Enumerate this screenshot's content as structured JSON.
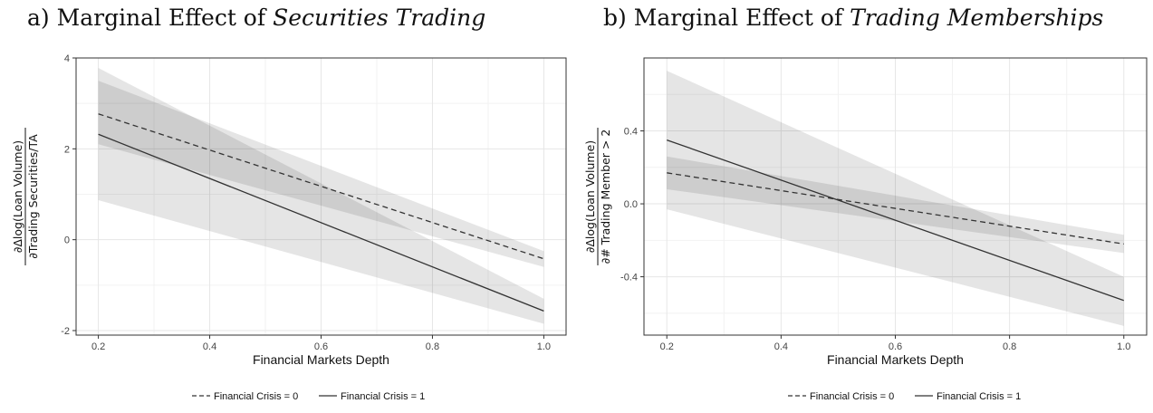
{
  "chart_data": [
    {
      "type": "line",
      "panel_prefix": "a)",
      "title_plain": "Marginal Effect of ",
      "title_italic": "Securities Trading",
      "xlabel": "Financial Markets Depth",
      "ylabel_numerator": "∂Δlog(Loan Volume)",
      "ylabel_denominator": "∂Trading Securities/TA",
      "xlim": [
        0.16,
        1.04
      ],
      "ylim": [
        -2.1,
        4.0
      ],
      "xticks": [
        0.2,
        0.4,
        0.6,
        0.8,
        1.0
      ],
      "xtick_labels": [
        "0.2",
        "0.4",
        "0.6",
        "0.8",
        "1.0"
      ],
      "yticks": [
        -2,
        0,
        2,
        4
      ],
      "ytick_labels": [
        "-2",
        "0",
        "2",
        "4"
      ],
      "grid": true,
      "legend_position": "bottom",
      "series": [
        {
          "name": "Financial Crisis = 0",
          "dash": "dashed",
          "x": [
            0.2,
            1.0
          ],
          "y": [
            2.77,
            -0.42
          ],
          "lower": [
            2.1,
            -0.6
          ],
          "upper": [
            3.5,
            -0.25
          ]
        },
        {
          "name": "Financial Crisis = 1",
          "dash": "solid",
          "x": [
            0.2,
            1.0
          ],
          "y": [
            2.32,
            -1.57
          ],
          "lower": [
            0.87,
            -1.85
          ],
          "upper": [
            3.78,
            -1.3
          ]
        }
      ]
    },
    {
      "type": "line",
      "panel_prefix": "b)",
      "title_plain": "Marginal Effect of ",
      "title_italic": "Trading Memberships",
      "xlabel": "Financial Markets Depth",
      "ylabel_numerator": "∂Δlog(Loan Volume)",
      "ylabel_denominator": "∂# Trading Member > 2",
      "xlim": [
        0.16,
        1.04
      ],
      "ylim": [
        -0.72,
        0.8
      ],
      "xticks": [
        0.2,
        0.4,
        0.6,
        0.8,
        1.0
      ],
      "xtick_labels": [
        "0.2",
        "0.4",
        "0.6",
        "0.8",
        "1.0"
      ],
      "yticks": [
        -0.4,
        0.0,
        0.4
      ],
      "ytick_labels": [
        "-0.4",
        "0.0",
        "0.4"
      ],
      "grid": true,
      "legend_position": "bottom",
      "series": [
        {
          "name": "Financial Crisis = 0",
          "dash": "dashed",
          "x": [
            0.2,
            1.0
          ],
          "y": [
            0.17,
            -0.22
          ],
          "lower": [
            0.08,
            -0.27
          ],
          "upper": [
            0.26,
            -0.17
          ]
        },
        {
          "name": "Financial Crisis = 1",
          "dash": "solid",
          "x": [
            0.2,
            1.0
          ],
          "y": [
            0.35,
            -0.53
          ],
          "lower": [
            -0.03,
            -0.67
          ],
          "upper": [
            0.73,
            -0.4
          ]
        }
      ]
    }
  ]
}
